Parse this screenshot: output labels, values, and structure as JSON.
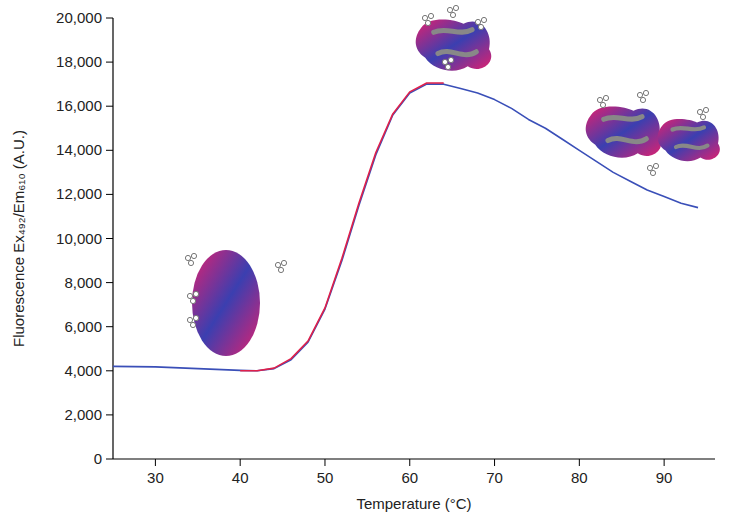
{
  "chart_data": {
    "type": "line",
    "x_label": "Temperature (°C)",
    "y_label": "Fluorescence Ex₄₉₂/Em₆₁₀ (A.U.)",
    "xlim": [
      25,
      96
    ],
    "ylim": [
      0,
      20000
    ],
    "xticks": [
      30,
      40,
      50,
      60,
      70,
      80,
      90
    ],
    "yticks": [
      0,
      {
        "value": 2000,
        "label": "2,000"
      },
      {
        "value": 4000,
        "label": "4,000"
      },
      {
        "value": 6000,
        "label": "6,000"
      },
      {
        "value": 8000,
        "label": "8,000"
      },
      {
        "value": 10000,
        "label": "10,000"
      },
      {
        "value": 12000,
        "label": "12,000"
      },
      {
        "value": 14000,
        "label": "14,000"
      },
      {
        "value": 16000,
        "label": "16,000"
      },
      {
        "value": 18000,
        "label": "18,000"
      },
      {
        "value": 20000,
        "label": "20,000"
      }
    ],
    "grid": false,
    "series": [
      {
        "color": "#3a4fb8",
        "x": [
          25,
          30,
          35,
          40,
          42,
          44,
          46,
          48,
          50,
          52,
          54,
          56,
          58,
          60,
          62,
          64,
          66,
          68,
          70,
          72,
          74,
          76,
          78,
          80,
          82,
          84,
          86,
          88,
          90,
          92,
          94
        ],
        "values": [
          4200,
          4180,
          4100,
          4020,
          4000,
          4100,
          4500,
          5300,
          6800,
          9000,
          11500,
          13800,
          15600,
          16600,
          17000,
          17000,
          16800,
          16600,
          16300,
          15900,
          15400,
          15000,
          14500,
          14000,
          13500,
          13000,
          12600,
          12200,
          11900,
          11600,
          11400
        ]
      },
      {
        "color": "#e0204a",
        "x": [
          40,
          42,
          44,
          46,
          48,
          50,
          52,
          54,
          56,
          58,
          60,
          62,
          64
        ],
        "values": [
          4000,
          4000,
          4120,
          4550,
          5350,
          6850,
          9100,
          11600,
          13900,
          15650,
          16650,
          17050,
          17050
        ]
      }
    ]
  }
}
